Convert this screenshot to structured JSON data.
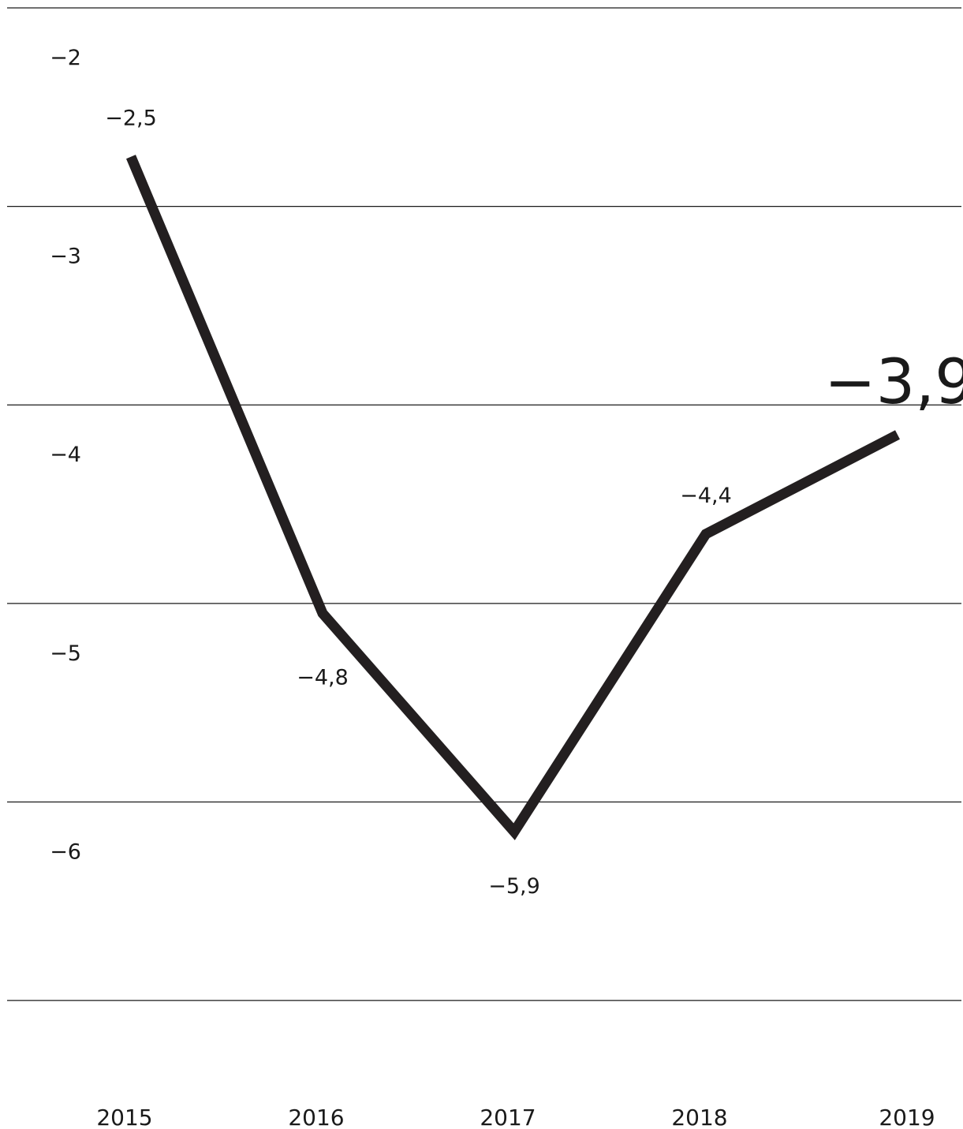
{
  "chart_data": {
    "type": "line",
    "title": "",
    "xlabel": "",
    "ylabel": "",
    "categories": [
      "2015",
      "2016",
      "2017",
      "2018",
      "2019"
    ],
    "series": [
      {
        "values": [
          -2.5,
          -4.8,
          -5.9,
          -4.4,
          -3.9
        ],
        "labels": [
          "−2,5",
          "−4,8",
          "−5,9",
          "−4,4",
          "−3,9"
        ],
        "color": "#231f20"
      }
    ],
    "ylim": [
      -7,
      -1.75
    ],
    "yticks": [
      {
        "value": -2,
        "label": "−2"
      },
      {
        "value": -3,
        "label": "−3"
      },
      {
        "value": -4,
        "label": "−4"
      },
      {
        "value": -5,
        "label": "−5"
      },
      {
        "value": -6,
        "label": "−6"
      }
    ],
    "gridlines": [
      -1.75,
      -2.75,
      -3.75,
      -4.75,
      -5.75,
      -6.75
    ],
    "grid": true,
    "legend": "none",
    "highlight_last_label": true
  }
}
